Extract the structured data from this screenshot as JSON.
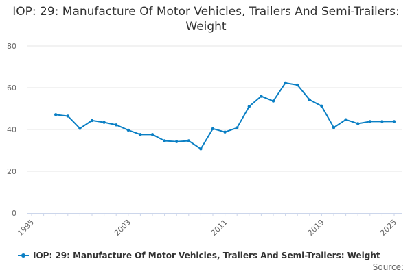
{
  "chart_data": {
    "type": "line",
    "title": "IOP: 29: Manufacture Of Motor Vehicles, Trailers And Semi-Trailers: Weight",
    "xlabel": "",
    "ylabel": "",
    "xlim": [
      1995,
      2025
    ],
    "ylim": [
      0,
      80
    ],
    "x_ticks": [
      1995,
      2003,
      2011,
      2019,
      2025
    ],
    "y_ticks": [
      0,
      20,
      40,
      60,
      80
    ],
    "grid": "horizontal",
    "legend_position": "bottom",
    "color": "#0a7fc4",
    "series": [
      {
        "name": "IOP: 29: Manufacture Of Motor Vehicles, Trailers And Semi-Trailers: Weight",
        "x": [
          1997,
          1998,
          1999,
          2000,
          2001,
          2002,
          2003,
          2004,
          2005,
          2006,
          2007,
          2008,
          2009,
          2010,
          2011,
          2012,
          2013,
          2014,
          2015,
          2016,
          2017,
          2018,
          2019,
          2020,
          2021,
          2022,
          2023,
          2024,
          2025
        ],
        "values": [
          47.1,
          46.4,
          40.5,
          44.3,
          43.4,
          42.2,
          39.7,
          37.6,
          37.6,
          34.6,
          34.2,
          34.6,
          30.7,
          40.4,
          38.8,
          40.8,
          51.0,
          55.9,
          53.6,
          62.3,
          61.3,
          54.2,
          51.2,
          40.9,
          44.7,
          42.8,
          43.8,
          43.8,
          43.8
        ]
      }
    ]
  },
  "source_label": "Source:"
}
